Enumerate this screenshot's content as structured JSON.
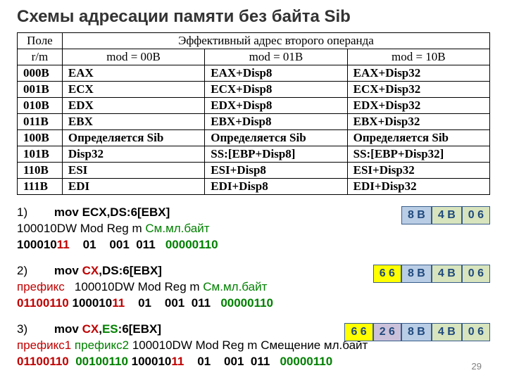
{
  "title": "Схемы адресации памяти без байта Sib",
  "slide_number": "29",
  "table": {
    "header_top": {
      "col1": "Поле",
      "col_span": "Эффективный адрес второго операнда"
    },
    "header_sub": {
      "col1": "r/m",
      "col2": "mod = 00B",
      "col3": "mod = 01B",
      "col4": "mod = 10B"
    },
    "rows": [
      {
        "rm": "000B",
        "a": "EAX",
        "b": "EAX+Disp8",
        "c": "EAX+Disp32"
      },
      {
        "rm": "001B",
        "a": "ECX",
        "b": "ECX+Disp8",
        "c": "ECX+Disp32"
      },
      {
        "rm": "010B",
        "a": "EDX",
        "b": "EDX+Disp8",
        "c": "EDX+Disp32"
      },
      {
        "rm": "011B",
        "a": "EBX",
        "b": "EBX+Disp8",
        "c": "EBX+Disp32"
      },
      {
        "rm": "100B",
        "a": "Определяется Sib",
        "b": "Определяется Sib",
        "c": "Определяется Sib"
      },
      {
        "rm": "101B",
        "a": "Disp32",
        "b": "SS:[EBP+Disp8]",
        "c": "SS:[EBP+Disp32]"
      },
      {
        "rm": "110B",
        "a": "ESI",
        "b": "ESI+Disp8",
        "c": "ESI+Disp32"
      },
      {
        "rm": "111B",
        "a": "EDI",
        "b": "EDI+Disp8",
        "c": "EDI+Disp32"
      }
    ]
  },
  "ex1": {
    "num": "1)",
    "mnemonic_black": "mov  ECX",
    "mnemonic_rest": ",DS:6[EBX]",
    "line2_black": "100010DW Mod Reg   m    ",
    "line2_green": "См.мл.байт",
    "line3_a": "100010",
    "line3_b": "11",
    "line3_c": "    01    001  011   ",
    "line3_d": "00000110",
    "bytes": [
      {
        "t": "8 B",
        "cls": "b-blue"
      },
      {
        "t": "4 B",
        "cls": "b-green"
      },
      {
        "t": "0 6",
        "cls": "b-green"
      }
    ]
  },
  "ex2": {
    "num": "2)",
    "mnemonic_black": "mov  ",
    "mnemonic_red": "CX",
    "mnemonic_rest": ",DS:6[EBX]",
    "line2_red": "префикс   ",
    "line2_black": "100010DW Mod Reg   m   ",
    "line2_green": "См.мл.байт",
    "line3_red": "01100110 ",
    "line3_a": "100010",
    "line3_b": "11",
    "line3_c": "    01    001  011   ",
    "line3_d": "00000110",
    "bytes": [
      {
        "t": "6 6",
        "cls": "b-yell"
      },
      {
        "t": "8 B",
        "cls": "b-blue"
      },
      {
        "t": "4 B",
        "cls": "b-green"
      },
      {
        "t": "0 6",
        "cls": "b-green"
      }
    ]
  },
  "ex3": {
    "num": "3)",
    "mnemonic_black": "mov  ",
    "mnemonic_red": "CX",
    "mnemonic_comma": ",",
    "mnemonic_green": "ES",
    "mnemonic_rest": ":6[EBX]",
    "line2_red": "префикс1 ",
    "line2_green": "префикс2 ",
    "line2_black": "100010DW Mod Reg   m   ",
    "line2_black2": "Смещение мл.байт",
    "line3_red": "01100110  ",
    "line3_green": "00100110 ",
    "line3_a": "100010",
    "line3_b": "11",
    "line3_c": "    01    001  011   ",
    "line3_d": "00000110",
    "bytes": [
      {
        "t": "6 6",
        "cls": "b-yell"
      },
      {
        "t": "2 6",
        "cls": "b-purp"
      },
      {
        "t": "8 B",
        "cls": "b-blue"
      },
      {
        "t": "4 B",
        "cls": "b-green"
      },
      {
        "t": "0 6",
        "cls": "b-green"
      }
    ]
  }
}
